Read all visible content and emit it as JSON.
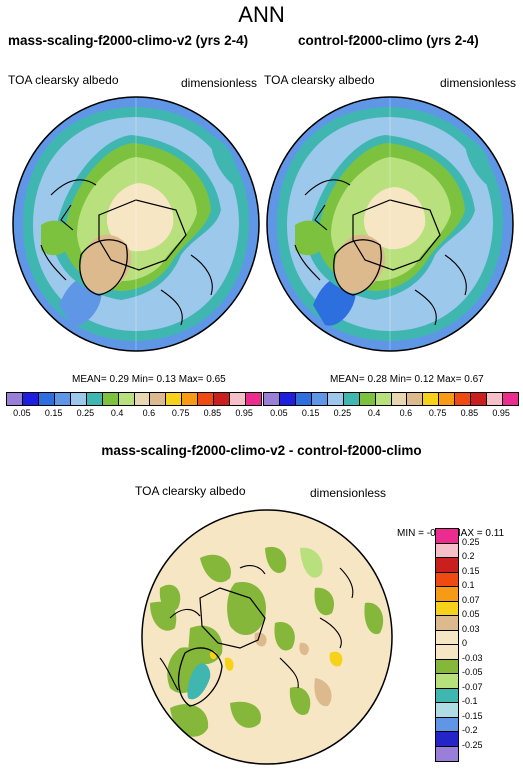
{
  "main_title": "ANN",
  "panels": [
    {
      "title": "mass-scaling-f2000-climo-v2 (yrs 2-4)",
      "variable": "TOA clearsky albedo",
      "units": "dimensionless",
      "stats": {
        "mean_label": "MEAN=",
        "mean": "0.29",
        "min_label": "Min=",
        "min": "0.13",
        "max_label": "Max=",
        "max": "0.65"
      }
    },
    {
      "title": "control-f2000-climo (yrs 2-4)",
      "variable": "TOA clearsky albedo",
      "units": "dimensionless",
      "stats": {
        "mean_label": "MEAN=",
        "mean": "0.28",
        "min_label": "Min=",
        "min": "0.12",
        "max_label": "Max=",
        "max": "0.67"
      }
    }
  ],
  "colorbar": {
    "colors": [
      "#9a7fd8",
      "#1e1ee0",
      "#2e6fe0",
      "#5f97e6",
      "#9cc8ec",
      "#3fb7b0",
      "#7cc23f",
      "#b8e07c",
      "#e8d7b0",
      "#ddb98e",
      "#f7d21a",
      "#f79a15",
      "#ef4a12",
      "#c91f1f",
      "#f5c0c8",
      "#ec2c8e"
    ],
    "labels": [
      "0.05",
      "0.15",
      "0.25",
      "0.4",
      "0.6",
      "0.75",
      "0.85",
      "0.95"
    ]
  },
  "diff_panel": {
    "title": "mass-scaling-f2000-climo-v2 - control-f2000-climo",
    "variable": "TOA clearsky albedo",
    "units": "dimensionless",
    "stats": {
      "min_label": "MIN =",
      "min": "-0.12",
      "max_label": "MAX =",
      "max": "0.11"
    }
  },
  "diff_colorbar": {
    "colors": [
      "#ec2c8e",
      "#f5c0c8",
      "#c91f1f",
      "#ef4a12",
      "#f79a15",
      "#f7d21a",
      "#ddb98e",
      "#f7e6c4",
      "#f7e6c4",
      "#84b73a",
      "#b8e07c",
      "#3fb7b0",
      "#b0dde4",
      "#5f97e6",
      "#2424c8",
      "#9a7fd8"
    ],
    "labels": [
      "0.25",
      "0.2",
      "0.15",
      "0.1",
      "0.07",
      "0.05",
      "0.03",
      "0",
      "-0.03",
      "-0.05",
      "-0.07",
      "-0.1",
      "-0.15",
      "-0.2",
      "-0.25"
    ]
  }
}
